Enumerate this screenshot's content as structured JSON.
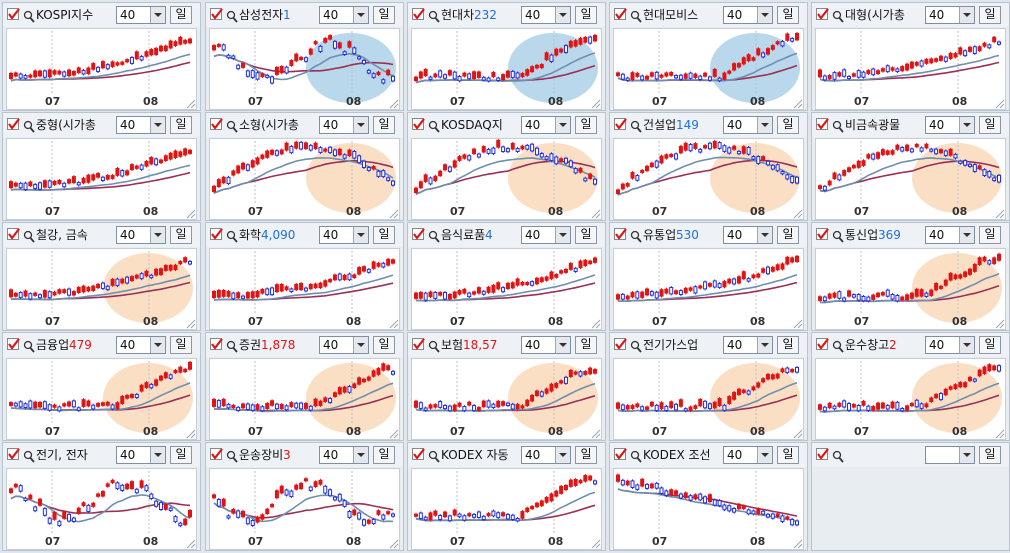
{
  "colors": {
    "up_candle": "#e11414",
    "down_candle": "#1f2fe0",
    "ma_short": "#6f8fb0",
    "ma_long": "#9b2f55",
    "highlight_blue": "#7fb8dc",
    "highlight_orange": "#f5c496",
    "value_red": "#e11414",
    "value_blue": "#1f6fe0"
  },
  "icons": [
    "checkbox-checked-icon",
    "magnifier-icon",
    "dropdown-arrow-icon",
    "resize-grip-icon"
  ],
  "panels": [
    {
      "name": "KOSPI지수",
      "value": "",
      "value_color": "",
      "period": "40",
      "unit": "일",
      "x_labels": [
        "07",
        "08"
      ],
      "highlight": "",
      "trend": "up"
    },
    {
      "name": "삼성전자",
      "value": "1",
      "value_color": "#1f6fe0",
      "period": "40",
      "unit": "일",
      "x_labels": [
        "07",
        "08"
      ],
      "highlight": "blue",
      "trend": "mix"
    },
    {
      "name": "현대차",
      "value": "232",
      "value_color": "#1f6fe0",
      "period": "40",
      "unit": "일",
      "x_labels": [
        "07",
        "08"
      ],
      "highlight": "blue",
      "trend": "spike"
    },
    {
      "name": "현대모비스",
      "value": "",
      "value_color": "",
      "period": "40",
      "unit": "일",
      "x_labels": [
        "07",
        "08"
      ],
      "highlight": "blue",
      "trend": "spike"
    },
    {
      "name": "대형(시가총",
      "value": "",
      "value_color": "",
      "period": "40",
      "unit": "일",
      "x_labels": [
        "07",
        "08"
      ],
      "highlight": "",
      "trend": "up"
    },
    {
      "name": "중형(시가총",
      "value": "",
      "value_color": "",
      "period": "40",
      "unit": "일",
      "x_labels": [
        "07",
        "08"
      ],
      "highlight": "",
      "trend": "up"
    },
    {
      "name": "소형(시가총",
      "value": "",
      "value_color": "",
      "period": "40",
      "unit": "일",
      "x_labels": [
        "07",
        "08"
      ],
      "highlight": "orange",
      "trend": "updown"
    },
    {
      "name": "KOSDAQ지",
      "value": "",
      "value_color": "",
      "period": "40",
      "unit": "일",
      "x_labels": [
        "07",
        "08"
      ],
      "highlight": "orange",
      "trend": "updown"
    },
    {
      "name": "건설업",
      "value": "149",
      "value_color": "#1f6fe0",
      "period": "40",
      "unit": "일",
      "x_labels": [
        "07",
        "08"
      ],
      "highlight": "orange",
      "trend": "updown"
    },
    {
      "name": "비금속광물",
      "value": "",
      "value_color": "",
      "period": "40",
      "unit": "일",
      "x_labels": [
        "07",
        "08"
      ],
      "highlight": "orange",
      "trend": "updown"
    },
    {
      "name": "철강, 금속",
      "value": "",
      "value_color": "",
      "period": "40",
      "unit": "일",
      "x_labels": [
        "07",
        "08"
      ],
      "highlight": "orange",
      "trend": "up"
    },
    {
      "name": "화학",
      "value": "4,090",
      "value_color": "#1f6fe0",
      "period": "40",
      "unit": "일",
      "x_labels": [
        "07",
        "08"
      ],
      "highlight": "",
      "trend": "up"
    },
    {
      "name": "음식료품",
      "value": "4",
      "value_color": "#1f6fe0",
      "period": "40",
      "unit": "일",
      "x_labels": [
        "07",
        "08"
      ],
      "highlight": "",
      "trend": "up"
    },
    {
      "name": "유통업",
      "value": "530",
      "value_color": "#1f6fe0",
      "period": "40",
      "unit": "일",
      "x_labels": [
        "07",
        "08"
      ],
      "highlight": "",
      "trend": "up"
    },
    {
      "name": "통신업",
      "value": "369",
      "value_color": "#1f6fe0",
      "period": "40",
      "unit": "일",
      "x_labels": [
        "07",
        "08"
      ],
      "highlight": "orange",
      "trend": "spike"
    },
    {
      "name": "금융업",
      "value": "479",
      "value_color": "#e11414",
      "period": "40",
      "unit": "일",
      "x_labels": [
        "07",
        "08"
      ],
      "highlight": "orange",
      "trend": "spike"
    },
    {
      "name": "증권",
      "value": "1,878",
      "value_color": "#e11414",
      "period": "40",
      "unit": "일",
      "x_labels": [
        "07",
        "08"
      ],
      "highlight": "orange",
      "trend": "spike"
    },
    {
      "name": "보험",
      "value": "18,57",
      "value_color": "#e11414",
      "period": "40",
      "unit": "일",
      "x_labels": [
        "07",
        "08"
      ],
      "highlight": "orange",
      "trend": "spike"
    },
    {
      "name": "전기가스업",
      "value": "",
      "value_color": "",
      "period": "40",
      "unit": "일",
      "x_labels": [
        "07",
        "08"
      ],
      "highlight": "orange",
      "trend": "spike"
    },
    {
      "name": "운수창고",
      "value": "2",
      "value_color": "#e11414",
      "period": "40",
      "unit": "일",
      "x_labels": [
        "07",
        "08"
      ],
      "highlight": "orange",
      "trend": "spike"
    },
    {
      "name": "전기, 전자",
      "value": "",
      "value_color": "",
      "period": "40",
      "unit": "일",
      "x_labels": [
        "07",
        "08"
      ],
      "highlight": "",
      "trend": "mix"
    },
    {
      "name": "운송장비",
      "value": "3",
      "value_color": "#e11414",
      "period": "40",
      "unit": "일",
      "x_labels": [
        "07",
        "08"
      ],
      "highlight": "",
      "trend": "mix"
    },
    {
      "name": "KODEX 자동",
      "value": "",
      "value_color": "",
      "period": "40",
      "unit": "일",
      "x_labels": [
        "07",
        "08"
      ],
      "highlight": "",
      "trend": "spike"
    },
    {
      "name": "KODEX 조선",
      "value": "",
      "value_color": "",
      "period": "40",
      "unit": "일",
      "x_labels": [
        "07",
        "08"
      ],
      "highlight": "",
      "trend": "down"
    },
    {
      "name": "",
      "value": "",
      "value_color": "",
      "period": "",
      "unit": "일",
      "x_labels": [],
      "highlight": "",
      "trend": "empty"
    }
  ]
}
